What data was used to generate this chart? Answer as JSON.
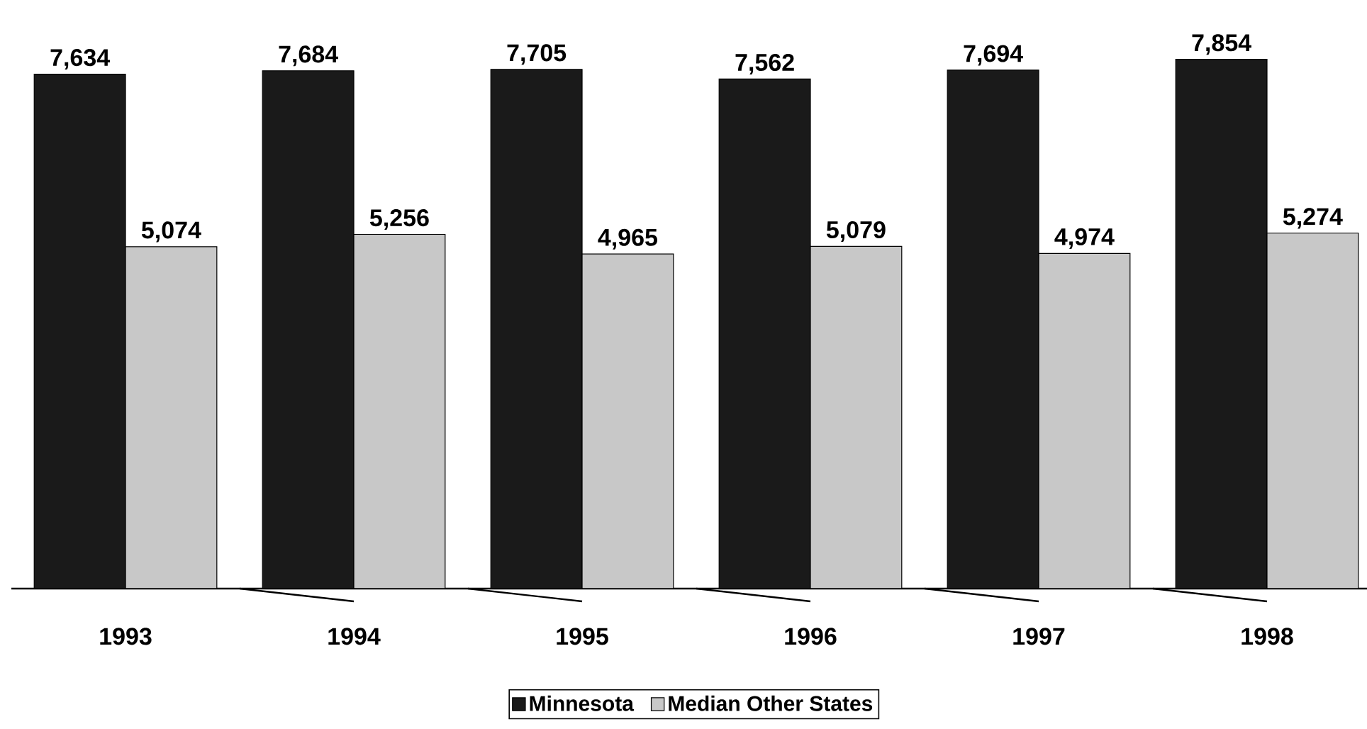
{
  "chart_data": {
    "type": "bar",
    "categories": [
      "1993",
      "1994",
      "1995",
      "1996",
      "1997",
      "1998"
    ],
    "series": [
      {
        "name": "Minnesota",
        "color": "#1a1a1a",
        "values": [
          7634,
          7684,
          7705,
          7562,
          7694,
          7854
        ],
        "value_labels": [
          "7,634",
          "7,684",
          "7,705",
          "7,562",
          "7,694",
          "7,854"
        ]
      },
      {
        "name": "Median Other States",
        "color": "#c8c8c8",
        "values": [
          5074,
          5256,
          4965,
          5079,
          4974,
          5274
        ],
        "value_labels": [
          "5,074",
          "5,256",
          "4,965",
          "5,079",
          "4,974",
          "5,274"
        ]
      }
    ],
    "legend": "bottom"
  }
}
